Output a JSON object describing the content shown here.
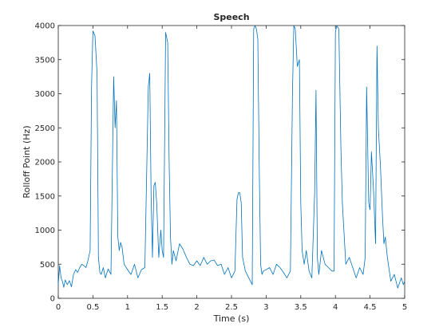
{
  "chart_data": {
    "type": "line",
    "title": "Speech",
    "xlabel": "Time (s)",
    "ylabel": "Rolloff Point (Hz)",
    "xlim": [
      0,
      5
    ],
    "ylim": [
      0,
      4000
    ],
    "xticks": [
      0,
      0.5,
      1,
      1.5,
      2,
      2.5,
      3,
      3.5,
      4,
      4.5,
      5
    ],
    "xtick_labels": [
      "0",
      "0.5",
      "1",
      "1.5",
      "2",
      "2.5",
      "3",
      "3.5",
      "4",
      "4.5",
      "5"
    ],
    "yticks": [
      0,
      500,
      1000,
      1500,
      2000,
      2500,
      3000,
      3500,
      4000
    ],
    "ytick_labels": [
      "0",
      "500",
      "1000",
      "1500",
      "2000",
      "2500",
      "3000",
      "3500",
      "4000"
    ],
    "grid": false,
    "line_color": "#0072BD",
    "series": [
      {
        "x": [
          0.0,
          0.02,
          0.04,
          0.06,
          0.08,
          0.1,
          0.13,
          0.16,
          0.19,
          0.22,
          0.25,
          0.28,
          0.31,
          0.34,
          0.37,
          0.4,
          0.43,
          0.46,
          0.48,
          0.5,
          0.53,
          0.56,
          0.58,
          0.6,
          0.62,
          0.65,
          0.68,
          0.72,
          0.76,
          0.8,
          0.82,
          0.84,
          0.86,
          0.88,
          0.9,
          0.92,
          0.95,
          1.0,
          1.05,
          1.1,
          1.15,
          1.2,
          1.25,
          1.3,
          1.32,
          1.34,
          1.36,
          1.38,
          1.4,
          1.42,
          1.45,
          1.48,
          1.5,
          1.52,
          1.55,
          1.58,
          1.6,
          1.62,
          1.64,
          1.66,
          1.7,
          1.75,
          1.8,
          1.85,
          1.9,
          1.95,
          2.0,
          2.05,
          2.1,
          2.15,
          2.2,
          2.25,
          2.3,
          2.35,
          2.4,
          2.45,
          2.5,
          2.55,
          2.58,
          2.6,
          2.62,
          2.64,
          2.66,
          2.7,
          2.75,
          2.8,
          2.82,
          2.84,
          2.86,
          2.88,
          2.9,
          2.92,
          2.94,
          2.96,
          3.0,
          3.05,
          3.1,
          3.15,
          3.2,
          3.25,
          3.3,
          3.35,
          3.38,
          3.4,
          3.42,
          3.45,
          3.48,
          3.5,
          3.52,
          3.55,
          3.58,
          3.62,
          3.66,
          3.7,
          3.72,
          3.74,
          3.76,
          3.8,
          3.85,
          3.9,
          3.95,
          3.98,
          4.0,
          4.02,
          4.05,
          4.08,
          4.1,
          4.15,
          4.2,
          4.25,
          4.3,
          4.35,
          4.4,
          4.43,
          4.45,
          4.48,
          4.5,
          4.52,
          4.55,
          4.58,
          4.6,
          4.62,
          4.65,
          4.68,
          4.7,
          4.72,
          4.75,
          4.8,
          4.85,
          4.9,
          4.95,
          4.98,
          5.0
        ],
        "y": [
          200,
          480,
          300,
          250,
          160,
          270,
          200,
          260,
          170,
          350,
          420,
          380,
          450,
          500,
          480,
          450,
          560,
          700,
          3100,
          3920,
          3850,
          3300,
          600,
          380,
          350,
          450,
          300,
          430,
          350,
          3250,
          2500,
          2900,
          900,
          700,
          820,
          750,
          500,
          420,
          350,
          500,
          300,
          420,
          450,
          3100,
          3300,
          1500,
          600,
          1650,
          1700,
          1400,
          600,
          1000,
          700,
          600,
          3900,
          3750,
          2000,
          900,
          500,
          700,
          550,
          800,
          720,
          600,
          500,
          480,
          550,
          480,
          600,
          500,
          550,
          560,
          480,
          500,
          350,
          450,
          300,
          400,
          1450,
          1550,
          1550,
          1400,
          600,
          400,
          300,
          200,
          3950,
          4000,
          3950,
          3800,
          2000,
          500,
          350,
          400,
          420,
          450,
          350,
          500,
          450,
          380,
          300,
          400,
          3000,
          4000,
          3950,
          3400,
          3500,
          1400,
          700,
          500,
          700,
          400,
          300,
          1550,
          3050,
          600,
          350,
          700,
          500,
          450,
          400,
          400,
          3900,
          4000,
          3950,
          2200,
          1400,
          500,
          600,
          450,
          300,
          450,
          350,
          600,
          3100,
          1400,
          1300,
          2150,
          1600,
          800,
          3700,
          2500,
          1950,
          1200,
          800,
          900,
          600,
          250,
          350,
          150,
          300,
          200,
          250
        ]
      }
    ]
  }
}
